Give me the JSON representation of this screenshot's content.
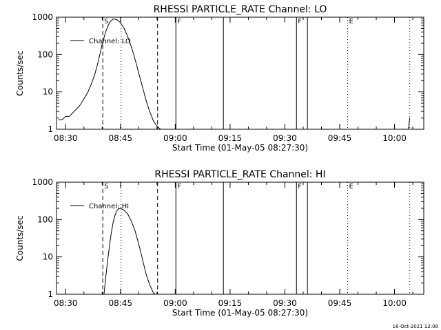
{
  "footer_stamp": "16-Oct-2021 12:08",
  "chart_data": [
    {
      "type": "line",
      "title": "RHESSI PARTICLE_RATE Channel: LO",
      "xlabel": "Start Time (01-May-05 08:27:30)",
      "ylabel": "Counts/sec",
      "yscale": "log",
      "xlim": [
        "08:27:30",
        "10:08:00"
      ],
      "ylim": [
        1,
        1000
      ],
      "xticks": [
        "08:30",
        "08:45",
        "09:00",
        "09:15",
        "09:30",
        "09:45",
        "10:00"
      ],
      "yticks": [
        "1",
        "10",
        "100",
        "1000"
      ],
      "legend": {
        "label": "Channel: LO",
        "position": "top-left"
      },
      "grid": false,
      "series": [
        {
          "name": "Channel: LO",
          "x": [
            "08:28:00",
            "08:29:00",
            "08:30:00",
            "08:31:00",
            "08:32:00",
            "08:33:00",
            "08:34:00",
            "08:35:00",
            "08:36:00",
            "08:37:00",
            "08:38:00",
            "08:39:00",
            "08:40:00",
            "08:41:00",
            "08:42:00",
            "08:43:00",
            "08:44:00",
            "08:45:00",
            "08:46:00",
            "08:47:00",
            "08:48:00",
            "08:49:00",
            "08:50:00",
            "08:51:00",
            "08:52:00",
            "08:53:00",
            "08:54:00",
            "08:55:00",
            "08:56:00"
          ],
          "values": [
            1.8,
            1.8,
            2.2,
            2.2,
            2.8,
            3.5,
            4.5,
            6.5,
            9.5,
            16,
            30,
            70,
            190,
            420,
            720,
            900,
            860,
            720,
            500,
            300,
            160,
            75,
            32,
            14,
            6,
            3,
            1.7,
            1.2,
            1
          ]
        },
        {
          "name": "Channel: LO",
          "x": [
            "10:03:45",
            "10:04:10"
          ],
          "values": [
            1,
            2
          ]
        }
      ],
      "markers": [
        {
          "time": "08:40:10",
          "style": "dashed",
          "label": "S"
        },
        {
          "time": "08:55:10",
          "style": "dashed",
          "label": ""
        },
        {
          "time": "08:45:10",
          "style": "dotted",
          "label": ""
        },
        {
          "time": "09:00:10",
          "style": "solid",
          "label": "F"
        },
        {
          "time": "09:13:10",
          "style": "solid",
          "label": ""
        },
        {
          "time": "09:33:10",
          "style": "solid",
          "label": "F"
        },
        {
          "time": "09:36:10",
          "style": "solid",
          "label": ""
        },
        {
          "time": "09:47:10",
          "style": "dotted",
          "label": "E"
        },
        {
          "time": "10:04:10",
          "style": "dotted",
          "label": ""
        }
      ]
    },
    {
      "type": "line",
      "title": "RHESSI PARTICLE_RATE Channel: HI",
      "xlabel": "Start Time (01-May-05 08:27:30)",
      "ylabel": "Counts/sec",
      "yscale": "log",
      "xlim": [
        "08:27:30",
        "10:08:00"
      ],
      "ylim": [
        1,
        1000
      ],
      "xticks": [
        "08:30",
        "08:45",
        "09:00",
        "09:15",
        "09:30",
        "09:45",
        "10:00"
      ],
      "yticks": [
        "1",
        "10",
        "100",
        "1000"
      ],
      "legend": {
        "label": "Channel: HI",
        "position": "top-left"
      },
      "grid": false,
      "series": [
        {
          "name": "Channel: HI",
          "x": [
            "08:40:30",
            "08:41:00",
            "08:41:30",
            "08:42:00",
            "08:42:30",
            "08:43:00",
            "08:43:30",
            "08:44:00",
            "08:44:30",
            "08:45:00",
            "08:46:00",
            "08:47:00",
            "08:48:00",
            "08:49:00",
            "08:50:00",
            "08:51:00",
            "08:52:00",
            "08:53:00",
            "08:54:00",
            "08:54:30"
          ],
          "values": [
            1,
            3,
            8,
            20,
            45,
            85,
            130,
            170,
            195,
            200,
            180,
            140,
            90,
            50,
            22,
            9,
            3.5,
            1.8,
            1.1,
            1
          ]
        }
      ],
      "markers": [
        {
          "time": "08:40:10",
          "style": "dashed",
          "label": "S"
        },
        {
          "time": "08:55:10",
          "style": "dashed",
          "label": ""
        },
        {
          "time": "08:45:10",
          "style": "dotted",
          "label": ""
        },
        {
          "time": "09:00:10",
          "style": "solid",
          "label": "F"
        },
        {
          "time": "09:13:10",
          "style": "solid",
          "label": ""
        },
        {
          "time": "09:33:10",
          "style": "solid",
          "label": "F"
        },
        {
          "time": "09:36:10",
          "style": "solid",
          "label": ""
        },
        {
          "time": "09:47:10",
          "style": "dotted",
          "label": "E"
        },
        {
          "time": "10:04:10",
          "style": "dotted",
          "label": ""
        }
      ]
    }
  ]
}
